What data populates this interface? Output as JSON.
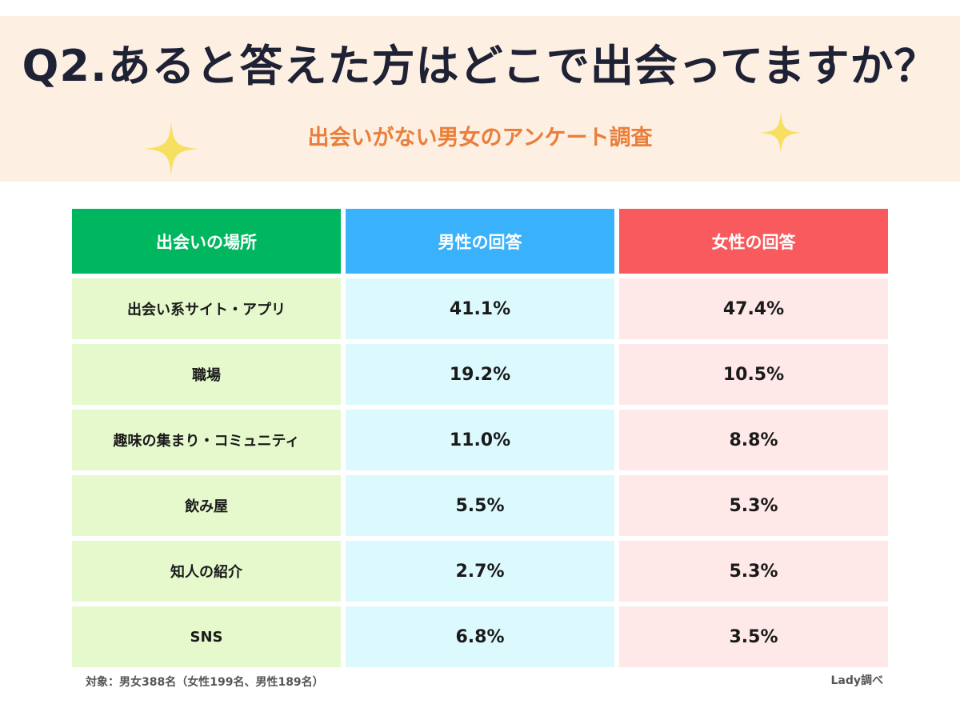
{
  "colors": {
    "header_bg": "#fdf0e3",
    "title": "#1f2235",
    "subtitle": "#ea7e3a",
    "sparkle": "#f7e061",
    "place_header": "#00b65f",
    "male_header": "#3ab1fb",
    "female_header": "#f85a5d",
    "place_cell": "#e6f9cd",
    "male_cell": "#dcfafe",
    "female_cell": "#fee8e8"
  },
  "icons": [
    "sparkle-icon"
  ],
  "chart_data": {
    "type": "table",
    "title": "Q2.あると答えた方はどこで出会ってますか？",
    "subtitle": "出会いがない男女のアンケート調査",
    "columns": [
      "出会いの場所",
      "男性の回答",
      "女性の回答"
    ],
    "rows": [
      [
        "出会い系サイト・アプリ",
        "41.1%",
        "47.4%"
      ],
      [
        "職場",
        "19.2%",
        "10.5%"
      ],
      [
        "趣味の集まり・コミュニティ",
        "11.0%",
        "8.8%"
      ],
      [
        "飲み屋",
        "5.5%",
        "5.3%"
      ],
      [
        "知人の紹介",
        "2.7%",
        "5.3%"
      ],
      [
        "SNS",
        "6.8%",
        "3.5%"
      ]
    ],
    "footnote": "対象：男女388名（女性199名、男性189名）",
    "credit": "Lady調べ"
  }
}
